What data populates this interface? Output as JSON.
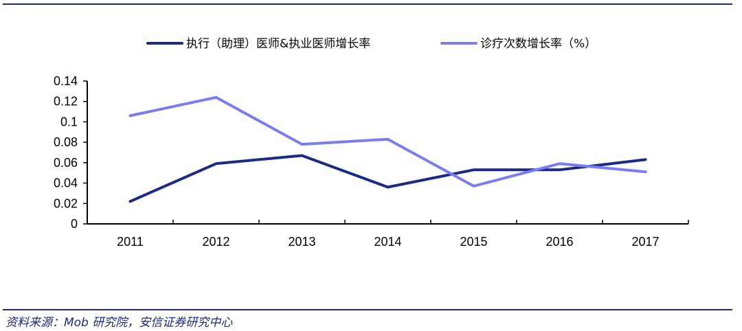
{
  "chart_data": {
    "type": "line",
    "x": [
      "2011",
      "2012",
      "2013",
      "2014",
      "2015",
      "2016",
      "2017"
    ],
    "series": [
      {
        "name": "执行（助理）医师&执业医师增长率",
        "color": "#1b2a86",
        "values": [
          0.022,
          0.059,
          0.067,
          0.036,
          0.053,
          0.053,
          0.063
        ]
      },
      {
        "name": "诊疗次数增长率（%）",
        "color": "#7b7cf0",
        "values": [
          0.106,
          0.124,
          0.078,
          0.083,
          0.037,
          0.059,
          0.051
        ]
      }
    ],
    "yticks": [
      "0",
      "0.02",
      "0.04",
      "0.06",
      "0.08",
      "0.1",
      "0.12",
      "0.14"
    ],
    "ylim": [
      0,
      0.14
    ],
    "grid": false,
    "legend": "top"
  },
  "source": "资料来源：Mob 研究院，安信证券研究中心"
}
